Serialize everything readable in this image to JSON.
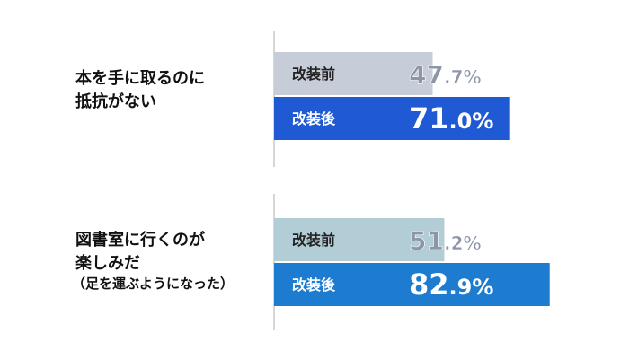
{
  "chart_data": [
    {
      "type": "bar",
      "orientation": "horizontal",
      "category": "本を手に取るのに抵抗がない",
      "category_lines": [
        "本を手に取るのに",
        "抵抗がない"
      ],
      "note": "",
      "series": [
        {
          "name": "改装前",
          "value": 47.7,
          "label_main": "47",
          "label_rest": ".7%",
          "bar_color": "#c6ccd8",
          "text_color": "#8c96a8"
        },
        {
          "name": "改装後",
          "value": 71.0,
          "label_main": "71",
          "label_rest": ".0%",
          "bar_color": "#1f5ad4",
          "text_color": "#ffffff"
        }
      ],
      "xlim": [
        0,
        100
      ]
    },
    {
      "type": "bar",
      "orientation": "horizontal",
      "category": "図書室に行くのが楽しみだ（足を運ぶようになった）",
      "category_lines": [
        "図書室に行くのが",
        "楽しみだ"
      ],
      "note": "（足を運ぶようになった）",
      "series": [
        {
          "name": "改装前",
          "value": 51.2,
          "label_main": "51",
          "label_rest": ".2%",
          "bar_color": "#b2cdd6",
          "text_color": "#8c96a8"
        },
        {
          "name": "改装後",
          "value": 82.9,
          "label_main": "82",
          "label_rest": ".9%",
          "bar_color": "#1d7bd0",
          "text_color": "#ffffff"
        }
      ],
      "xlim": [
        0,
        100
      ]
    }
  ]
}
